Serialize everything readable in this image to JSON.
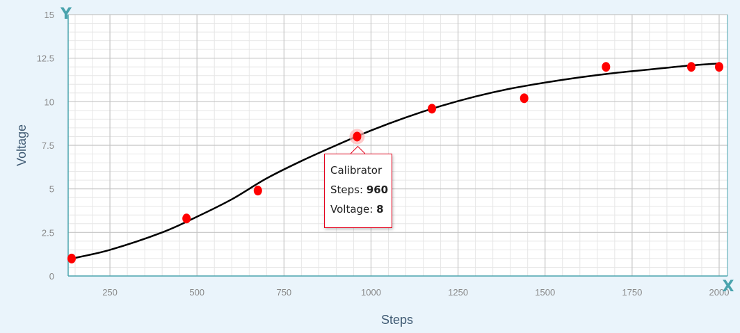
{
  "chart_data": {
    "type": "scatter",
    "xlabel": "Steps",
    "ylabel": "Voltage",
    "xlim": [
      130,
      2000
    ],
    "ylim": [
      0,
      15
    ],
    "x_ticks": [
      "250",
      "500",
      "750",
      "1000",
      "1250",
      "1500",
      "1750",
      "2000"
    ],
    "y_ticks": [
      "0",
      "2.5",
      "5",
      "7.5",
      "10",
      "12.5",
      "15"
    ],
    "grid": true,
    "axis_badges": {
      "x": "X",
      "y": "Y"
    },
    "series": [
      {
        "name": "Calibrator",
        "color": "#ff0000",
        "points": [
          [
            140,
            1.0
          ],
          [
            470,
            3.3
          ],
          [
            675,
            4.9
          ],
          [
            960,
            8.0
          ],
          [
            1175,
            9.6
          ],
          [
            1440,
            10.2
          ],
          [
            1675,
            12.0
          ],
          [
            1920,
            12.0
          ],
          [
            2000,
            12.0
          ]
        ]
      }
    ],
    "fit_curve": {
      "color": "#000000",
      "x": [
        140,
        250,
        400,
        500,
        600,
        700,
        800,
        900,
        1000,
        1100,
        1200,
        1300,
        1400,
        1500,
        1600,
        1700,
        1800,
        1900,
        2000
      ],
      "y": [
        1.0,
        1.5,
        2.5,
        3.4,
        4.4,
        5.6,
        6.6,
        7.5,
        8.35,
        9.1,
        9.75,
        10.3,
        10.75,
        11.1,
        11.4,
        11.65,
        11.85,
        12.05,
        12.2
      ]
    },
    "tooltip": {
      "series_name": "Calibrator",
      "steps_label": "Steps:",
      "steps_value": "960",
      "voltage_label": "Voltage:",
      "voltage_value": "8"
    }
  }
}
